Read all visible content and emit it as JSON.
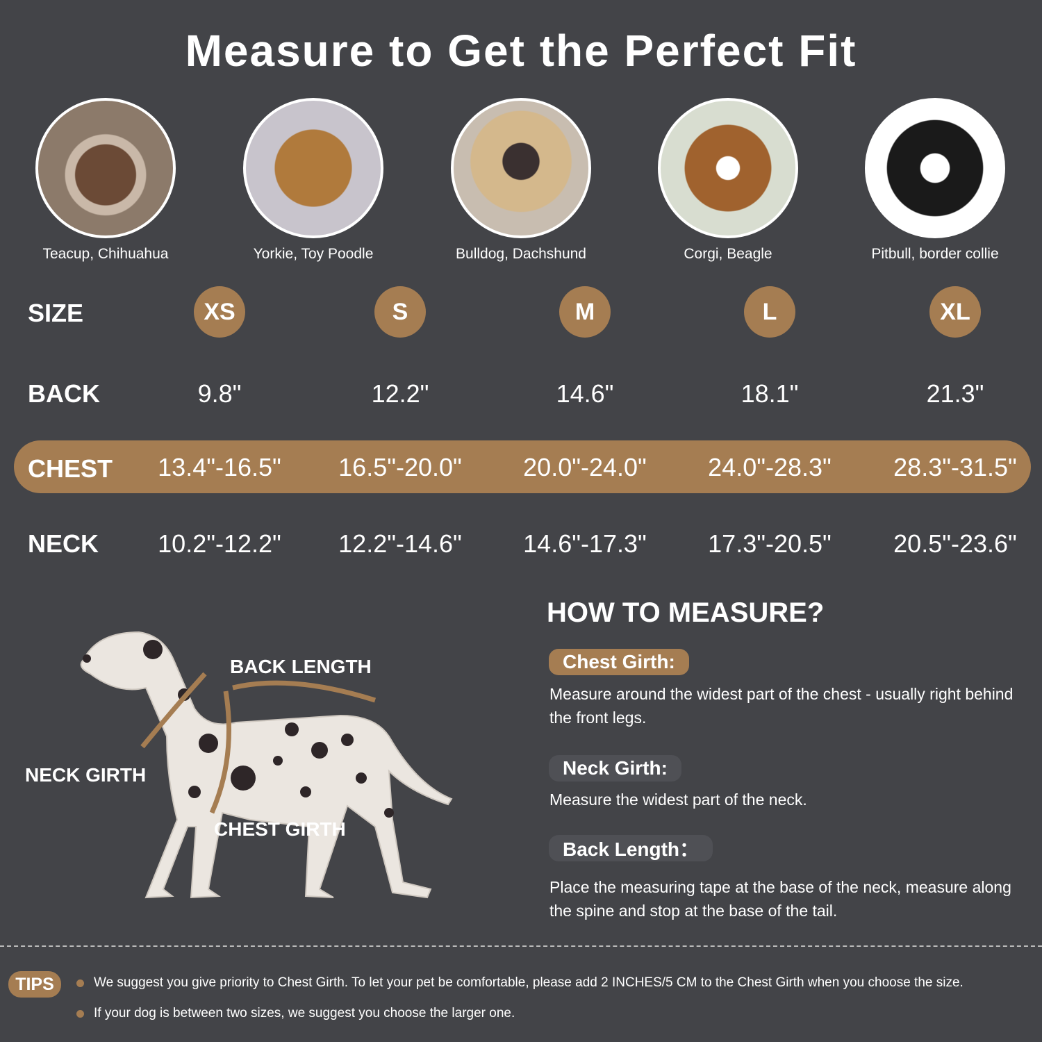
{
  "title": "Measure to Get the Perfect Fit",
  "colors": {
    "background": "#434448",
    "accent": "#a57d52",
    "pill": "#4f5055"
  },
  "breeds": [
    "Teacup, Chihuahua",
    "Yorkie, Toy Poodle",
    "Bulldog, Dachshund",
    "Corgi, Beagle",
    "Pitbull, border collie"
  ],
  "rows": {
    "size": {
      "label": "SIZE",
      "values": [
        "XS",
        "S",
        "M",
        "L",
        "XL"
      ]
    },
    "back": {
      "label": "BACK",
      "values": [
        "9.8\"",
        "12.2\"",
        "14.6\"",
        "18.1\"",
        "21.3\""
      ]
    },
    "chest": {
      "label": "CHEST",
      "values": [
        "13.4\"-16.5\"",
        "16.5\"-20.0\"",
        "20.0\"-24.0\"",
        "24.0\"-28.3\"",
        "28.3\"-31.5\""
      ]
    },
    "neck": {
      "label": "NECK",
      "values": [
        "10.2\"-12.2\"",
        "12.2\"-14.6\"",
        "14.6\"-17.3\"",
        "17.3\"-20.5\"",
        "20.5\"-23.6\""
      ]
    }
  },
  "diagram": {
    "back": "BACK LENGTH",
    "neck": "NECK GIRTH",
    "chest": "CHEST GIRTH"
  },
  "how": {
    "title": "HOW TO MEASURE?",
    "items": [
      {
        "label": "Chest Girth:",
        "text": "Measure around the widest part of the chest - usually right behind the front legs."
      },
      {
        "label": "Neck Girth:",
        "text": "Measure the widest part of the neck."
      },
      {
        "label": "Back Length：",
        "text": "Place the measuring tape at the base of the neck, measure along the spine and stop at the base of the tail."
      }
    ]
  },
  "tips": {
    "label": "TIPS",
    "items": [
      "We suggest you give priority to Chest Girth. To let your pet be comfortable, please add 2 INCHES/5 CM to the Chest Girth when you choose the size.",
      "If your dog is between two sizes, we suggest you choose the larger one."
    ]
  }
}
